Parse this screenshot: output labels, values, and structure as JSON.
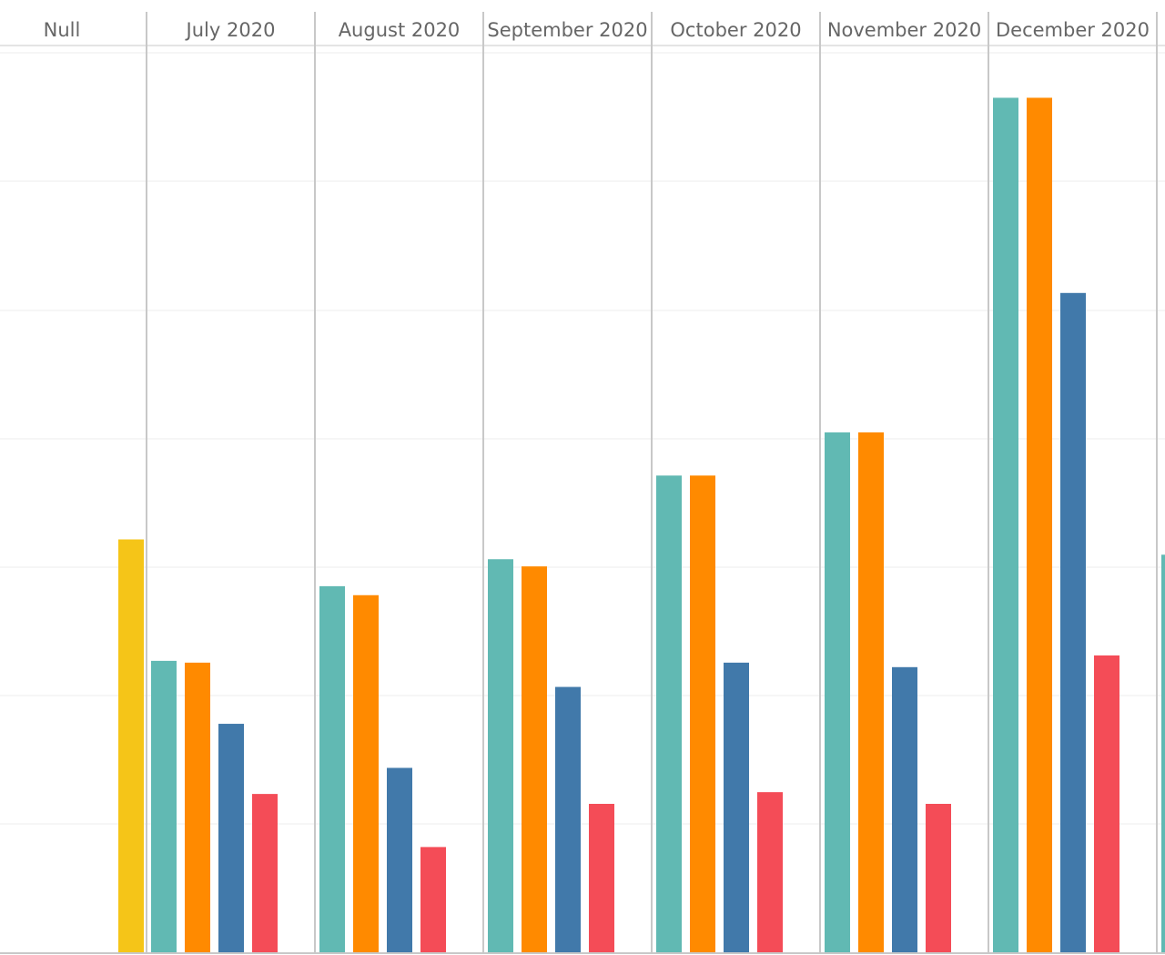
{
  "chart_data": {
    "type": "bar",
    "title": "",
    "xlabel": "",
    "ylabel": "",
    "grid": true,
    "ylim": [
      0,
      100
    ],
    "categories": [
      "Null",
      "July 2020",
      "August 2020",
      "September 2020",
      "October 2020",
      "November 2020",
      "December 2020"
    ],
    "colors": [
      "#f5c518",
      "#61b9b3",
      "#ff8a00",
      "#4179aa",
      "#f44c57"
    ],
    "groups": [
      {
        "category": "Null",
        "bars": [
          {
            "color_index": 0,
            "value": 45.9
          }
        ]
      },
      {
        "category": "July 2020",
        "bars": [
          {
            "color_index": 1,
            "value": 32.4
          },
          {
            "color_index": 2,
            "value": 32.2
          },
          {
            "color_index": 3,
            "value": 25.4
          },
          {
            "color_index": 4,
            "value": 17.6
          }
        ]
      },
      {
        "category": "August 2020",
        "bars": [
          {
            "color_index": 1,
            "value": 40.7
          },
          {
            "color_index": 2,
            "value": 39.7
          },
          {
            "color_index": 3,
            "value": 20.5
          },
          {
            "color_index": 4,
            "value": 11.7
          }
        ]
      },
      {
        "category": "September 2020",
        "bars": [
          {
            "color_index": 1,
            "value": 43.7
          },
          {
            "color_index": 2,
            "value": 42.9
          },
          {
            "color_index": 3,
            "value": 29.5
          },
          {
            "color_index": 4,
            "value": 16.5
          }
        ]
      },
      {
        "category": "October 2020",
        "bars": [
          {
            "color_index": 1,
            "value": 53.0
          },
          {
            "color_index": 2,
            "value": 53.0
          },
          {
            "color_index": 3,
            "value": 32.2
          },
          {
            "color_index": 4,
            "value": 17.8
          }
        ]
      },
      {
        "category": "November 2020",
        "bars": [
          {
            "color_index": 1,
            "value": 57.8
          },
          {
            "color_index": 2,
            "value": 57.8
          },
          {
            "color_index": 3,
            "value": 31.7
          },
          {
            "color_index": 4,
            "value": 16.5
          }
        ]
      },
      {
        "category": "December 2020",
        "bars": [
          {
            "color_index": 1,
            "value": 95.0
          },
          {
            "color_index": 2,
            "value": 95.0
          },
          {
            "color_index": 3,
            "value": 73.3
          },
          {
            "color_index": 4,
            "value": 33.0
          }
        ]
      },
      {
        "category": "",
        "bars": [
          {
            "color_index": 1,
            "value": 44.2
          }
        ]
      }
    ]
  }
}
